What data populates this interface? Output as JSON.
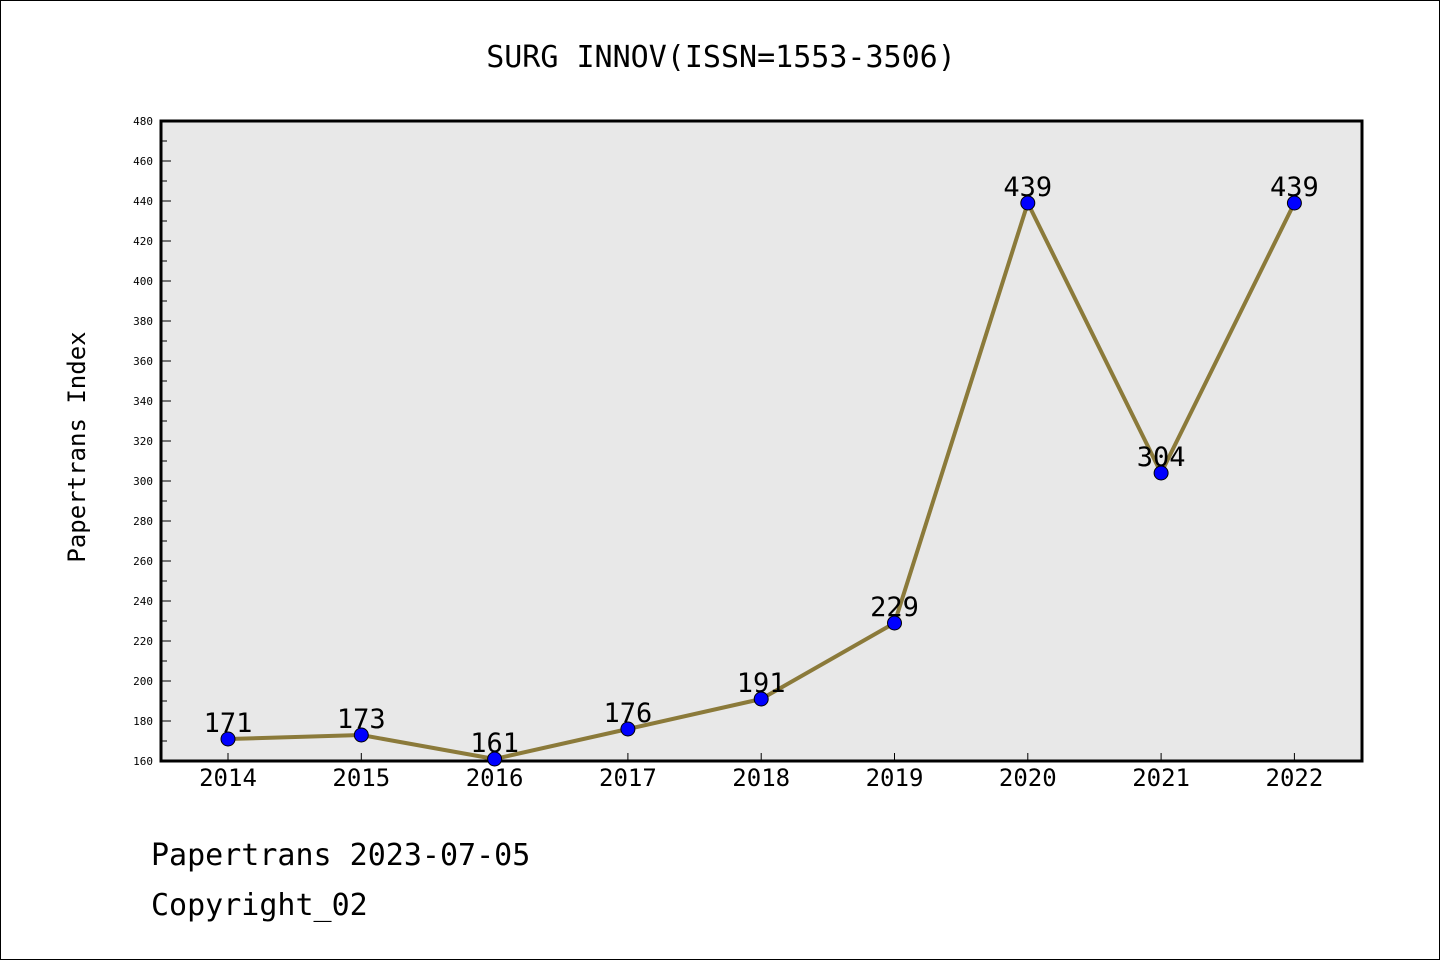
{
  "chart_data": {
    "type": "line",
    "title": "SURG INNOV(ISSN=1553-3506)",
    "xlabel": "",
    "ylabel": "Papertrans Index",
    "categories": [
      "2014",
      "2015",
      "2016",
      "2017",
      "2018",
      "2019",
      "2020",
      "2021",
      "2022"
    ],
    "series": [
      {
        "values": [
          171,
          173,
          161,
          176,
          191,
          229,
          439,
          304,
          439
        ]
      }
    ],
    "ylim": [
      160,
      480
    ],
    "y_ticks": [
      "160",
      "180",
      "200",
      "220",
      "240",
      "260",
      "280",
      "300",
      "320",
      "340",
      "360",
      "380",
      "400",
      "420",
      "440",
      "460",
      "480"
    ],
    "grid": false,
    "data_labels": true
  },
  "colors": {
    "line": "#8b7a3a",
    "marker": "#0000ff",
    "plot_background": "#e8e8e8"
  },
  "footer": {
    "line1": "Papertrans 2023-07-05",
    "line2": "Copyright_02"
  }
}
